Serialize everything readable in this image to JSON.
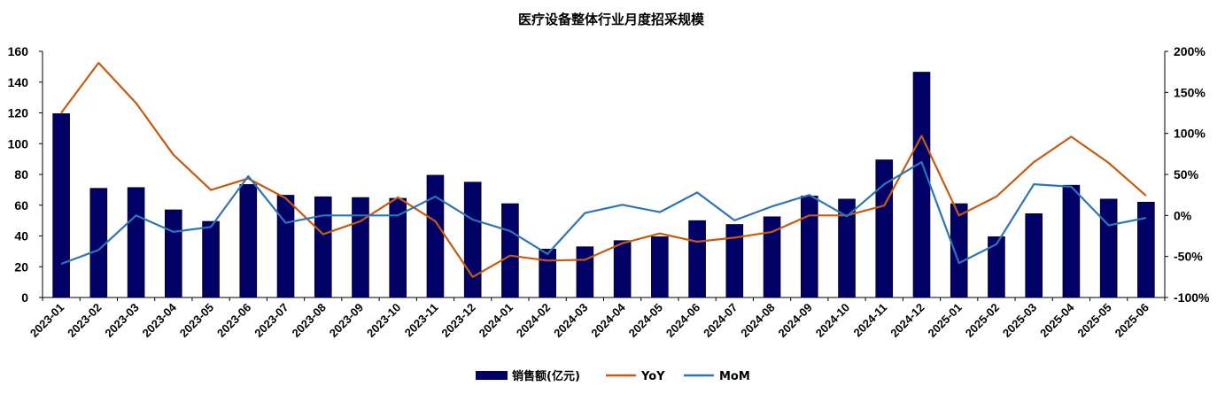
{
  "chart_data": {
    "type": "bar",
    "title": "医疗设备整体行业月度招采规模",
    "categories": [
      "2023-01",
      "2023-02",
      "2023-03",
      "2023-04",
      "2023-05",
      "2023-06",
      "2023-07",
      "2023-08",
      "2023-09",
      "2023-10",
      "2023-11",
      "2023-12",
      "2024-01",
      "2024-02",
      "2024-03",
      "2024-04",
      "2024-05",
      "2024-06",
      "2024-07",
      "2024-08",
      "2024-09",
      "2024-10",
      "2024-11",
      "2024-12",
      "2025-01",
      "2025-02",
      "2025-03",
      "2025-04",
      "2025-05",
      "2025-06"
    ],
    "y_left": {
      "min": 0,
      "max": 160,
      "step": 20,
      "ticks": [
        "0",
        "20",
        "40",
        "60",
        "80",
        "100",
        "120",
        "140",
        "160"
      ]
    },
    "y_right": {
      "min": -100,
      "max": 200,
      "step": 50,
      "ticks": [
        "-100%",
        "-50%",
        "0%",
        "50%",
        "100%",
        "150%",
        "200%"
      ]
    },
    "series": [
      {
        "name": "销售额(亿元)",
        "kind": "bar",
        "axis": "left",
        "color": "#000066",
        "values": [
          119.5,
          71,
          71.5,
          57,
          49.5,
          73.5,
          66.5,
          65.5,
          65,
          64.5,
          79.5,
          75,
          61,
          31.5,
          33,
          37,
          39.5,
          50,
          47.5,
          52.5,
          66,
          64,
          89.5,
          146.5,
          61,
          39.5,
          54.5,
          73,
          64,
          62
        ]
      },
      {
        "name": "YoY",
        "kind": "line",
        "axis": "right",
        "color": "#C55A11",
        "values": [
          125,
          186,
          137,
          74,
          31,
          45,
          21,
          -23,
          -7,
          22,
          -7,
          -75,
          -49,
          -55,
          -54,
          -34,
          -22,
          -32,
          -27,
          -20,
          0,
          0,
          12,
          97,
          0,
          23,
          65,
          96,
          64,
          24
        ]
      },
      {
        "name": "MoM",
        "kind": "line",
        "axis": "right",
        "color": "#2E75B6",
        "values": [
          -59,
          -42,
          0,
          -20,
          -14,
          48,
          -9,
          0,
          0,
          0,
          23,
          -5,
          -19,
          -47,
          3,
          13,
          4,
          28,
          -6,
          11,
          25,
          -1,
          38,
          65,
          -58,
          -35,
          38,
          35,
          -12,
          -3
        ]
      }
    ],
    "legend": {
      "placement": "bottom",
      "items": [
        "销售额(亿元)",
        "YoY",
        "MoM"
      ]
    },
    "grid": false
  }
}
